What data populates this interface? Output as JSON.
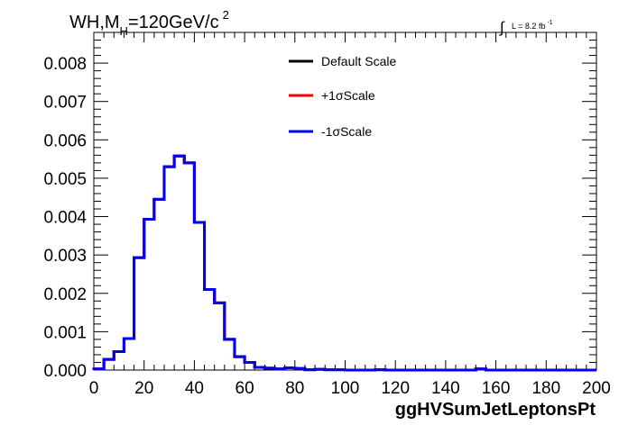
{
  "chart_data": {
    "type": "line",
    "title": {
      "prefix": "WH,M",
      "sub": "H",
      "value": "=120GeV/c",
      "sup": "2"
    },
    "luminosity": {
      "text": "L = 8.2 fb",
      "sup": "-1"
    },
    "xlabel": "ggHVSumJetLeptonsPt",
    "ylabel": "",
    "xlim": [
      0,
      200
    ],
    "ylim": [
      0,
      0.0088
    ],
    "xticks": [
      0,
      20,
      40,
      60,
      80,
      100,
      120,
      140,
      160,
      180,
      200
    ],
    "xtick_labels": [
      "0",
      "20",
      "40",
      "60",
      "80",
      "100",
      "120",
      "140",
      "160",
      "180",
      "200"
    ],
    "yticks": [
      0,
      0.001,
      0.002,
      0.003,
      0.004,
      0.005,
      0.006,
      0.007,
      0.008
    ],
    "ytick_labels": [
      "0.000",
      "0.001",
      "0.002",
      "0.003",
      "0.004",
      "0.005",
      "0.006",
      "0.007",
      "0.008"
    ],
    "grid": false,
    "legend_position": "top-right",
    "bin_edges": [
      0,
      4,
      8,
      12,
      16,
      20,
      24,
      28,
      32,
      36,
      40,
      44,
      48,
      52,
      56,
      60,
      64,
      68,
      72,
      76,
      80,
      84,
      88,
      92,
      96,
      100,
      104,
      108,
      112,
      116,
      120,
      124,
      128,
      132,
      136,
      140,
      144,
      148,
      152,
      156,
      160,
      164,
      168,
      172,
      176,
      180,
      184,
      188,
      192,
      196,
      200
    ],
    "series": [
      {
        "name": "Default Scale",
        "color": "#000000",
        "values": [
          3e-05,
          0.00028,
          0.00048,
          0.00082,
          0.00293,
          0.00393,
          0.00445,
          0.0053,
          0.00558,
          0.0054,
          0.00385,
          0.0021,
          0.00175,
          0.0008,
          0.00035,
          0.0002,
          7e-05,
          5e-05,
          3e-05,
          6e-05,
          4e-05,
          1e-05,
          2e-05,
          1e-05,
          1e-05,
          0.0,
          0.0,
          0.0,
          1e-05,
          0.0,
          0.0,
          0.0,
          0.0,
          0.0,
          0.0,
          0.0,
          0.0,
          0.0,
          3e-05,
          0.0,
          0.0,
          0.0,
          0.0,
          0.0,
          0.0,
          0.0,
          0.0,
          0.0,
          0.0,
          0.0
        ]
      },
      {
        "name": "+1σScale",
        "color": "#ff0000",
        "values": [
          3e-05,
          0.00028,
          0.00048,
          0.00082,
          0.00293,
          0.00393,
          0.00445,
          0.0053,
          0.00558,
          0.0054,
          0.00385,
          0.0021,
          0.00175,
          0.0008,
          0.00035,
          0.0002,
          7e-05,
          5e-05,
          3e-05,
          6e-05,
          4e-05,
          1e-05,
          2e-05,
          1e-05,
          1e-05,
          0.0,
          0.0,
          0.0,
          1e-05,
          0.0,
          0.0,
          0.0,
          0.0,
          0.0,
          0.0,
          0.0,
          0.0,
          0.0,
          3e-05,
          0.0,
          0.0,
          0.0,
          0.0,
          0.0,
          0.0,
          0.0,
          0.0,
          0.0,
          0.0,
          0.0
        ]
      },
      {
        "name": "-1σScale",
        "color": "#0000ee",
        "values": [
          3e-05,
          0.00028,
          0.00048,
          0.00082,
          0.00293,
          0.00393,
          0.00445,
          0.0053,
          0.00558,
          0.0054,
          0.00385,
          0.0021,
          0.00175,
          0.0008,
          0.00035,
          0.0002,
          7e-05,
          5e-05,
          3e-05,
          6e-05,
          4e-05,
          1e-05,
          2e-05,
          1e-05,
          1e-05,
          0.0,
          0.0,
          0.0,
          1e-05,
          0.0,
          0.0,
          0.0,
          0.0,
          0.0,
          0.0,
          0.0,
          0.0,
          0.0,
          3e-05,
          0.0,
          0.0,
          0.0,
          0.0,
          0.0,
          0.0,
          0.0,
          0.0,
          0.0,
          0.0,
          0.0
        ]
      }
    ]
  }
}
